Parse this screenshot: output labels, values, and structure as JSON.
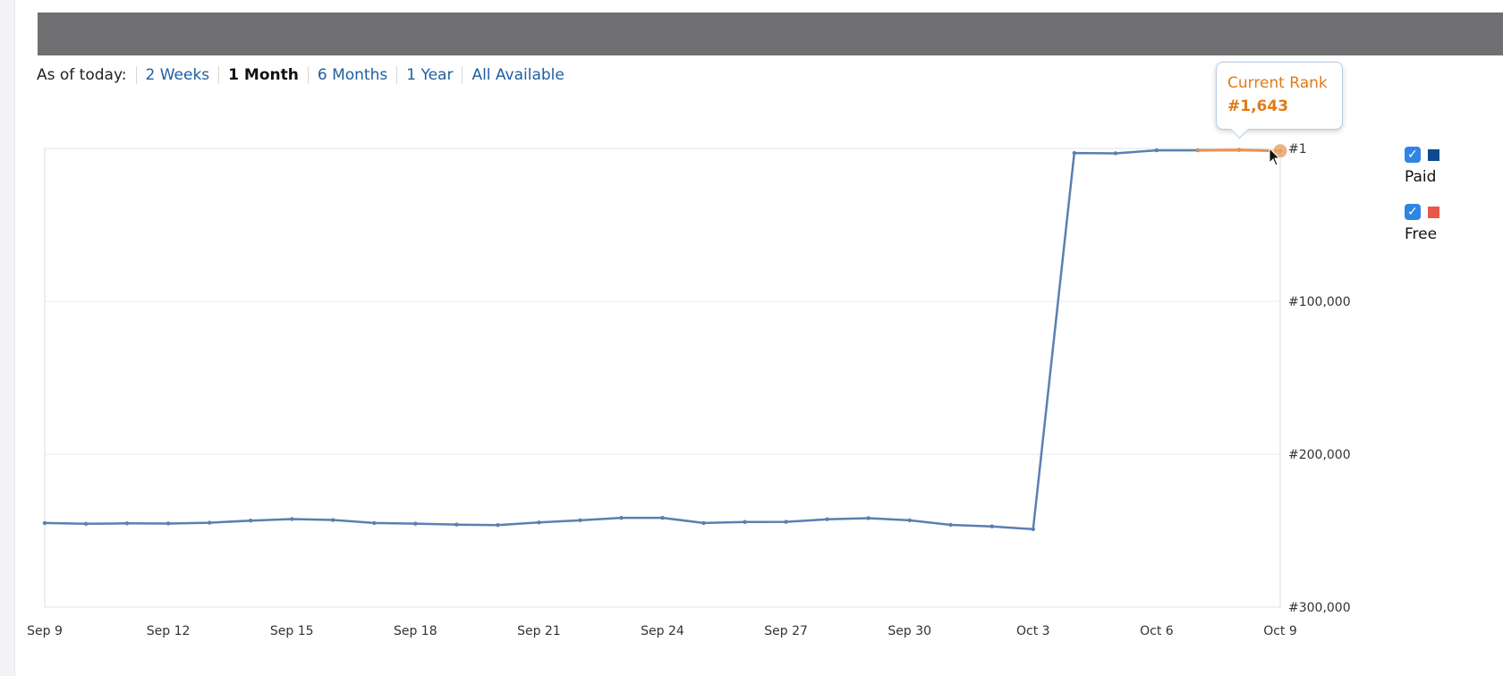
{
  "range_selector": {
    "label": "As of today:",
    "options": [
      {
        "label": "2 Weeks",
        "active": false
      },
      {
        "label": "1 Month",
        "active": true
      },
      {
        "label": "6 Months",
        "active": false
      },
      {
        "label": "1 Year",
        "active": false
      },
      {
        "label": "All Available",
        "active": false
      }
    ]
  },
  "tooltip": {
    "title": "Current Rank",
    "value": "#1,643"
  },
  "legend": [
    {
      "name": "Paid",
      "color": "#0b4a8f",
      "checked": true
    },
    {
      "name": "Free",
      "color": "#e8574a",
      "checked": true
    }
  ],
  "chart_data": {
    "type": "line",
    "xlabel": "",
    "ylabel": "",
    "x": [
      "Sep 9",
      "Sep 10",
      "Sep 11",
      "Sep 12",
      "Sep 13",
      "Sep 14",
      "Sep 15",
      "Sep 16",
      "Sep 17",
      "Sep 18",
      "Sep 19",
      "Sep 20",
      "Sep 21",
      "Sep 22",
      "Sep 23",
      "Sep 24",
      "Sep 25",
      "Sep 26",
      "Sep 27",
      "Sep 28",
      "Sep 29",
      "Sep 30",
      "Oct 1",
      "Oct 2",
      "Oct 3",
      "Oct 4",
      "Oct 5",
      "Oct 6",
      "Oct 7",
      "Oct 8",
      "Oct 9"
    ],
    "x_tick_labels": [
      "Sep 9",
      "Sep 12",
      "Sep 15",
      "Sep 18",
      "Sep 21",
      "Sep 24",
      "Sep 27",
      "Sep 30",
      "Oct 3",
      "Oct 6",
      "Oct 9"
    ],
    "y_tick_labels": [
      {
        "label": "#1",
        "value": 1
      },
      {
        "label": "#100,000",
        "value": 100000
      },
      {
        "label": "#200,000",
        "value": 200000
      },
      {
        "label": "#300,000",
        "value": 300000
      }
    ],
    "ylim": [
      1,
      300000
    ],
    "y_inverted": true,
    "grid": true,
    "legend_position": "right",
    "series": [
      {
        "name": "Paid",
        "color": "#5a7fb0",
        "values": [
          245000,
          245500,
          245200,
          245300,
          244800,
          243400,
          242400,
          243000,
          245000,
          245400,
          246000,
          246300,
          244600,
          243200,
          241600,
          241600,
          245000,
          244300,
          244200,
          242500,
          241800,
          243200,
          246200,
          247200,
          249000,
          3000,
          3200,
          1200,
          1200,
          1000,
          1643
        ]
      },
      {
        "name": "Free",
        "color": "#e89050",
        "values": [
          null,
          null,
          null,
          null,
          null,
          null,
          null,
          null,
          null,
          null,
          null,
          null,
          null,
          null,
          null,
          null,
          null,
          null,
          null,
          null,
          null,
          null,
          null,
          null,
          null,
          null,
          null,
          null,
          1200,
          1000,
          1643
        ]
      }
    ]
  }
}
